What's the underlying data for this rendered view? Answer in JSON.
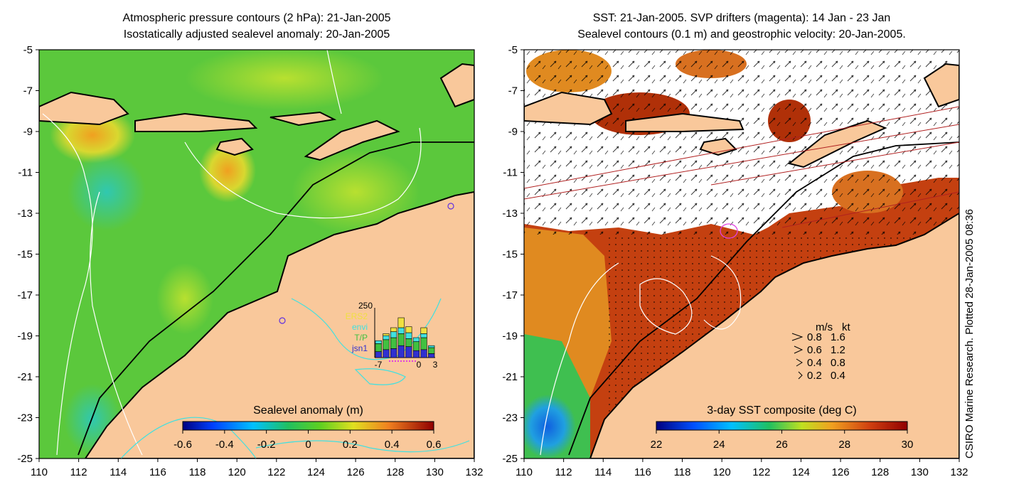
{
  "left_panel": {
    "title_line1": "Atmospheric pressure contours (2 hPa): 21-Jan-2005",
    "title_line2": "Isostatically adjusted sealevel anomaly: 20-Jan-2005",
    "y_ticks": [
      "-5",
      "-7",
      "-9",
      "-11",
      "-13",
      "-15",
      "-17",
      "-19",
      "-21",
      "-23",
      "-25"
    ],
    "x_ticks": [
      "110",
      "112",
      "114",
      "116",
      "118",
      "120",
      "122",
      "124",
      "126",
      "128",
      "130",
      "132"
    ],
    "colorbar": {
      "title": "Sealevel anomaly (m)",
      "ticks": [
        "-0.6",
        "-0.4",
        "-0.2",
        "0",
        "0.2",
        "0.4",
        "0.6"
      ]
    },
    "inset": {
      "ymax_label": "250",
      "legend": [
        {
          "label": "ERS2",
          "color": "#f0e040"
        },
        {
          "label": "envi",
          "color": "#40e0e0"
        },
        {
          "label": "T/P",
          "color": "#40c040"
        },
        {
          "label": "jsn1",
          "color": "#3030d0"
        }
      ],
      "x_ticks": [
        "-7",
        "0",
        "3"
      ],
      "stacked_counts": [
        [
          30,
          40,
          15,
          0
        ],
        [
          40,
          50,
          20,
          10
        ],
        [
          45,
          55,
          30,
          20
        ],
        [
          60,
          60,
          30,
          50
        ],
        [
          55,
          40,
          30,
          30
        ],
        [
          35,
          45,
          20,
          0
        ],
        [
          40,
          60,
          20,
          30
        ],
        [
          20,
          30,
          10,
          0
        ]
      ]
    }
  },
  "right_panel": {
    "title_line1": "SST: 21-Jan-2005. SVP drifters (magenta): 14 Jan - 23 Jan",
    "title_line2": "Sealevel contours (0.1 m) and geostrophic velocity: 20-Jan-2005.",
    "y_ticks": [
      "-5",
      "-7",
      "-9",
      "-11",
      "-13",
      "-15",
      "-17",
      "-19",
      "-21",
      "-23",
      "-25"
    ],
    "x_ticks": [
      "110",
      "112",
      "114",
      "116",
      "118",
      "120",
      "122",
      "124",
      "126",
      "128",
      "130",
      "132"
    ],
    "colorbar": {
      "title": "3-day SST composite (deg C)",
      "ticks": [
        "22",
        "24",
        "26",
        "28",
        "30"
      ]
    },
    "velocity_key": {
      "header_ms": "m/s",
      "header_kt": "kt",
      "rows": [
        {
          "ms": "0.8",
          "kt": "1.6"
        },
        {
          "ms": "0.6",
          "kt": "1.2"
        },
        {
          "ms": "0.4",
          "kt": "0.8"
        },
        {
          "ms": "0.2",
          "kt": "0.4"
        }
      ]
    }
  },
  "credit": "CSIRO Marine Research. Plotted 28-Jan-2005 08:36",
  "colors": {
    "land": "#f9c89b",
    "ocean_green": "#5bc83c",
    "sst_hot": "#b03008",
    "contour_white": "#ffffff",
    "contour_cyan": "#40e0e0",
    "drifter_magenta": "#e040e0"
  }
}
